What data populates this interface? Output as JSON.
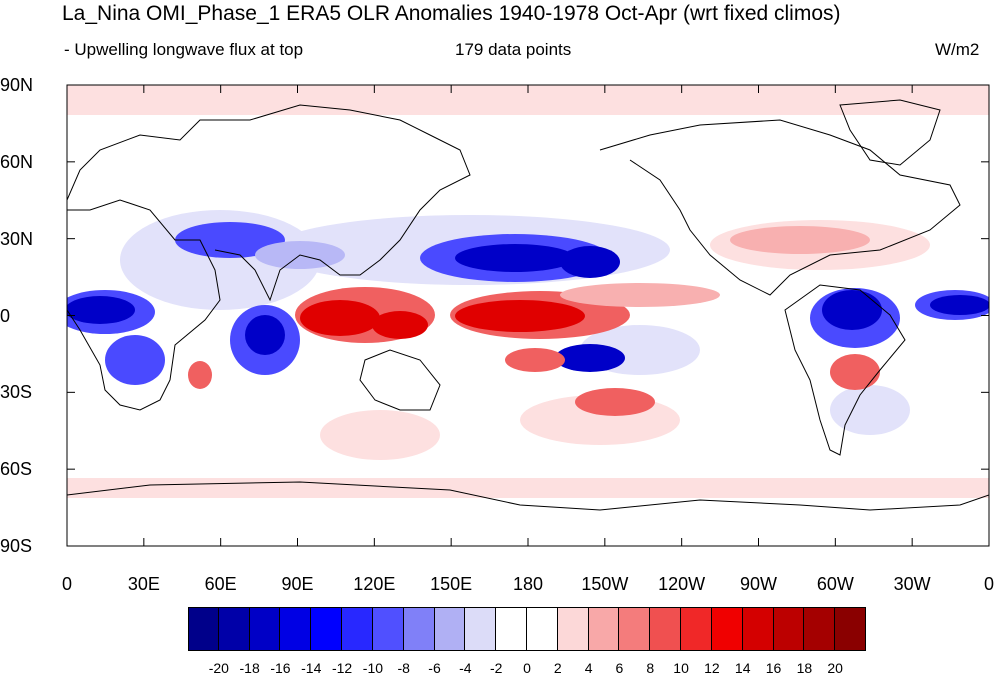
{
  "title": "La_Nina OMI_Phase_1 ERA5 OLR Anomalies 1940-1978 Oct-Apr (wrt fixed climos)",
  "subtitle_left": "- Upwelling longwave flux at top",
  "subtitle_center": "179 data points",
  "units": "W/m2",
  "y_axis_labels": [
    "90N",
    "60N",
    "30N",
    "0",
    "30S",
    "60S",
    "90S"
  ],
  "x_axis_labels": [
    "0",
    "30E",
    "60E",
    "90E",
    "120E",
    "150E",
    "180",
    "150W",
    "120W",
    "90W",
    "60W",
    "30W",
    "0"
  ],
  "colorbar": {
    "colors": [
      "#00008a",
      "#0000a8",
      "#0000c6",
      "#0000e4",
      "#0000ff",
      "#2828ff",
      "#5050ff",
      "#8080f8",
      "#b0b0f4",
      "#dcdcf8",
      "#ffffff",
      "#ffffff",
      "#fcd8d8",
      "#f8a8a8",
      "#f47c7c",
      "#f05050",
      "#f02828",
      "#f00000",
      "#d40000",
      "#bc0000",
      "#a40000",
      "#8a0000"
    ],
    "labels": [
      "-20",
      "-18",
      "-16",
      "-14",
      "-12",
      "-10",
      "-8",
      "-6",
      "-4",
      "-2",
      "0",
      "2",
      "4",
      "6",
      "8",
      "10",
      "12",
      "14",
      "16",
      "18",
      "20"
    ]
  },
  "map_colors": {
    "land_outline": "#000000",
    "strong_negative": "#0000c8",
    "negative": "#4a4aff",
    "weak_negative": "#b8b8f6",
    "faint_negative": "#e2e2fa",
    "strong_positive": "#e00000",
    "positive": "#f06060",
    "weak_positive": "#f8b0b0",
    "faint_positive": "#fde0e0"
  }
}
